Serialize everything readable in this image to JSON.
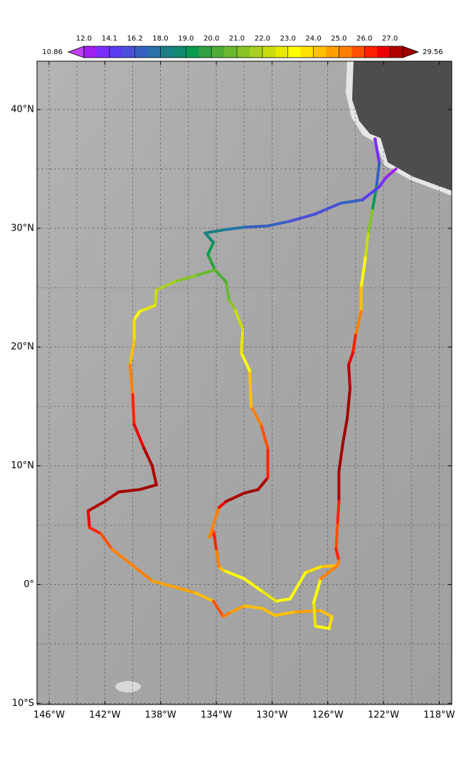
{
  "map": {
    "xlim": [
      -146.87,
      -117.1
    ],
    "ylim": [
      -10.1,
      44.07
    ],
    "xticks": [
      {
        "value": -146,
        "label": "146°W"
      },
      {
        "value": -142,
        "label": "142°W"
      },
      {
        "value": -138,
        "label": "138°W"
      },
      {
        "value": -134,
        "label": "134°W"
      },
      {
        "value": -130,
        "label": "130°W"
      },
      {
        "value": -126,
        "label": "126°W"
      },
      {
        "value": -122,
        "label": "122°W"
      },
      {
        "value": -118,
        "label": "118°W"
      }
    ],
    "yticks": [
      {
        "value": -10,
        "label": "10°S"
      },
      {
        "value": 0,
        "label": "0°"
      },
      {
        "value": 10,
        "label": "10°N"
      },
      {
        "value": 20,
        "label": "20°N"
      },
      {
        "value": 30,
        "label": "30°N"
      },
      {
        "value": 40,
        "label": "40°N"
      }
    ],
    "lon_gridlines": [
      -146,
      -144,
      -142,
      -140,
      -138,
      -136,
      -134,
      -132,
      -130,
      -128,
      -126,
      -124,
      -122,
      -120,
      -118
    ],
    "lat_gridlines": [
      -10,
      -5,
      0,
      5,
      10,
      15,
      20,
      25,
      30,
      35,
      40
    ],
    "colorbar": {
      "min": 10.86,
      "max": 29.56,
      "ticks": [
        {
          "value": 12,
          "label": "12.0"
        },
        14.1,
        16.2,
        {
          "value": 18,
          "label": "18.0"
        },
        {
          "value": 19,
          "label": "19.0"
        },
        {
          "value": 20,
          "label": "20.0"
        },
        {
          "value": 21,
          "label": "21.0"
        },
        {
          "value": 22,
          "label": "22.0"
        },
        {
          "value": 23,
          "label": "23.0"
        },
        {
          "value": 24,
          "label": "24.0"
        },
        {
          "value": 25,
          "label": "25.0"
        },
        {
          "value": 26,
          "label": "26.0"
        },
        {
          "value": 27,
          "label": "27.0"
        }
      ],
      "under_color": "#c040ff",
      "over_color": "#a00000",
      "colors": [
        "#a020f0",
        "#7b2cff",
        "#5a3cf0",
        "#4a50d8",
        "#3560c0",
        "#2872a8",
        "#1a7f8a",
        "#108a70",
        "#0a9a50",
        "#30a040",
        "#50ac38",
        "#6ab830",
        "#88c428",
        "#a8d020",
        "#c8dc10",
        "#e8e800",
        "#ffff00",
        "#ffe000",
        "#ffc000",
        "#ffa000",
        "#ff8000",
        "#ff5000",
        "#ff2000",
        "#ee0000",
        "#b00000"
      ]
    },
    "tracks": [
      {
        "lon": [
          -122.6,
          -122.3,
          -122.5,
          -122.8,
          -123.1,
          -123.3,
          -123.6,
          -123.6,
          -124,
          -124.2,
          -124.5,
          -124.4,
          -124.6,
          -124.9,
          -125.2,
          -125.2,
          -125.3,
          -125.4,
          -125.2,
          -125.3,
          -126.5,
          -127.6,
          -128.7,
          -129.7,
          -130.8,
          -132,
          -133.5,
          -133.8,
          -134,
          -134.2,
          -134.5,
          -133.8,
          -133.3,
          -132,
          -131,
          -130.3,
          -130.3,
          -130.8,
          -131.5,
          -131.6,
          -132.2,
          -132.1,
          -132.7,
          -133.1,
          -133.3,
          -134.1,
          -134.6,
          -134.2,
          -134.8,
          -133.3,
          -131.9,
          -130.3,
          -128.7,
          -126.9,
          -125.1,
          -123.5,
          -122.3,
          -121.8,
          -121.1
        ],
        "lat": [
          37.5,
          35.5,
          33.5,
          31.5,
          29.5,
          27.5,
          25,
          23,
          21,
          19.5,
          18.5,
          16.5,
          14,
          12,
          9.5,
          7,
          5,
          3,
          2,
          1.6,
          1.5,
          1.0,
          -1.2,
          -1.4,
          -0.5,
          0.5,
          1.2,
          1.5,
          3,
          4.5,
          4,
          6.5,
          7,
          7.7,
          8,
          9,
          11.5,
          13.5,
          15,
          18,
          19.5,
          21.5,
          23.3,
          24,
          25.5,
          26.5,
          27.8,
          28.8,
          29.6,
          29.9,
          30.1,
          30.2,
          30.6,
          31.2,
          32.1,
          32.4,
          33.5,
          34.3,
          35
        ],
        "temp": [
          12,
          14,
          17,
          19,
          21,
          22,
          23,
          24,
          25,
          26,
          26.5,
          27.5,
          28,
          28,
          28,
          27.5,
          26,
          25.5,
          26,
          25,
          24,
          23.5,
          23,
          23,
          22.5,
          23,
          23,
          24,
          25,
          26,
          25.5,
          25,
          26.5,
          27.5,
          28,
          27,
          26,
          25.5,
          25,
          24,
          23,
          22.5,
          22,
          21,
          20.5,
          20,
          19.5,
          19,
          18.5,
          18,
          17.5,
          17,
          16.5,
          16,
          16,
          16.5,
          15,
          14,
          12.5
        ]
      },
      {
        "lon": [
          -134.1,
          -135.5,
          -137,
          -138.3,
          -138.4,
          -139.5,
          -139.9,
          -139.9,
          -140.2,
          -140,
          -139.9,
          -139.2,
          -138.6,
          -138.3,
          -139.5,
          -141,
          -142,
          -143.2,
          -143.1,
          -142.3,
          -141.5,
          -140.2,
          -138.6,
          -137,
          -135.5,
          -134.2,
          -133.5,
          -132.9,
          -132,
          -130.7,
          -129.8,
          -128.3,
          -126.5,
          -125.7,
          -125.9,
          -126.9,
          -127,
          -126.5,
          -125.3
        ],
        "lat": [
          26.5,
          26,
          25.5,
          24.8,
          23.5,
          23,
          22.3,
          20.5,
          18.5,
          16,
          13.5,
          11.5,
          10,
          8.4,
          8,
          7.8,
          7,
          6.2,
          4.8,
          4.3,
          3,
          1.8,
          0.3,
          -0.2,
          -0.7,
          -1.4,
          -2.7,
          -2.3,
          -1.8,
          -2,
          -2.6,
          -2.3,
          -2.2,
          -2.7,
          -3.7,
          -3.5,
          -1.5,
          0.5,
          1.6
        ],
        "temp": [
          20,
          20.5,
          21,
          21.5,
          22,
          22.5,
          23,
          23.5,
          24,
          25,
          26,
          26.5,
          27,
          27.5,
          28,
          28,
          27.5,
          27,
          26.5,
          26,
          25.5,
          25,
          25,
          24.5,
          24.5,
          24,
          25.5,
          25,
          24.5,
          24,
          24,
          24,
          24.5,
          24,
          23.5,
          23,
          22.5,
          23,
          25
        ]
      }
    ]
  }
}
